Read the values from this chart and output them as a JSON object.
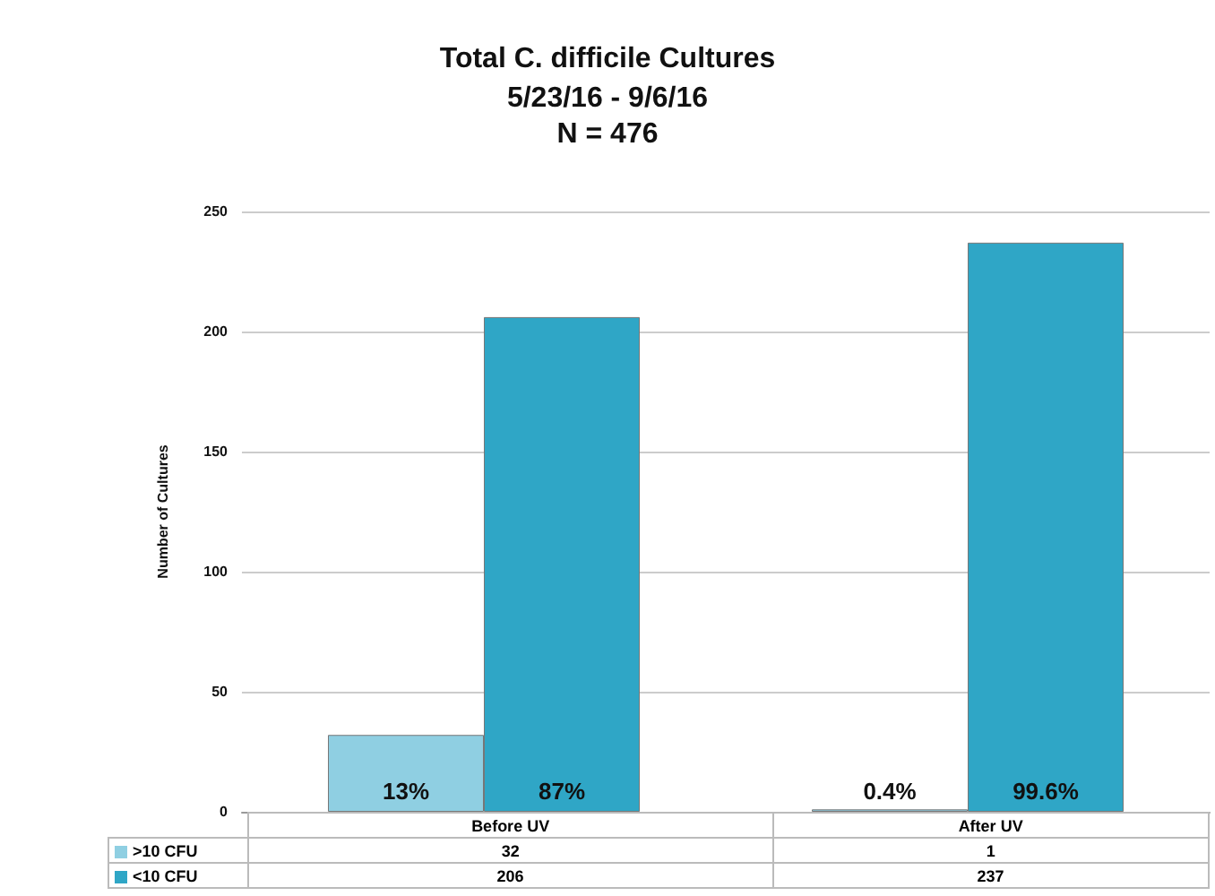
{
  "chart_data": {
    "type": "bar",
    "title": "Total C. difficile Cultures",
    "subtitle": "5/23/16 - 9/6/16\nN = 476",
    "ylabel": "Number of Cultures",
    "categories": [
      "Before UV",
      "After UV"
    ],
    "series": [
      {
        "name": ">10 CFU",
        "color": "#8fcfe2",
        "values": [
          32,
          1
        ]
      },
      {
        "name": "<10 CFU",
        "color": "#2fa6c6",
        "values": [
          206,
          237
        ]
      }
    ],
    "annotations": [
      "13%",
      "87%",
      "0.4%",
      "99.6%"
    ],
    "ylim": [
      0,
      250
    ],
    "yticks": [
      0,
      50,
      100,
      150,
      200,
      250
    ],
    "grid": "y",
    "legend": "bottom",
    "data_labels": true
  }
}
